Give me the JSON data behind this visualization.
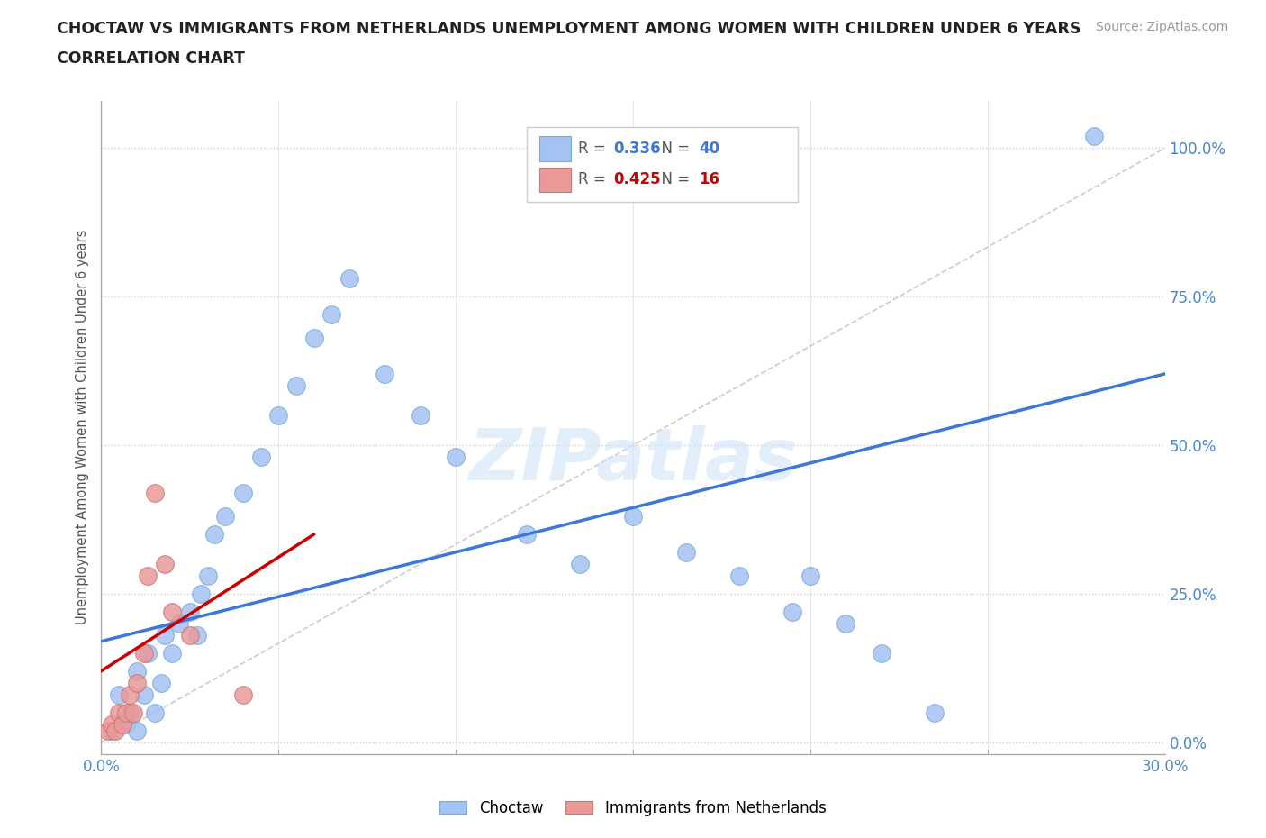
{
  "title_line1": "CHOCTAW VS IMMIGRANTS FROM NETHERLANDS UNEMPLOYMENT AMONG WOMEN WITH CHILDREN UNDER 6 YEARS",
  "title_line2": "CORRELATION CHART",
  "source_text": "Source: ZipAtlas.com",
  "ylabel": "Unemployment Among Women with Children Under 6 years",
  "xlim": [
    0.0,
    0.3
  ],
  "ylim": [
    -0.02,
    1.08
  ],
  "ytick_labels": [
    "0.0%",
    "25.0%",
    "50.0%",
    "75.0%",
    "100.0%"
  ],
  "ytick_values": [
    0.0,
    0.25,
    0.5,
    0.75,
    1.0
  ],
  "xtick_labels": [
    "0.0%",
    "30.0%"
  ],
  "xtick_values": [
    0.0,
    0.3
  ],
  "watermark": "ZIPatlas",
  "blue_R": 0.336,
  "blue_N": 40,
  "pink_R": 0.425,
  "pink_N": 16,
  "blue_color": "#a4c2f4",
  "pink_color": "#ea9999",
  "blue_line_color": "#3c78d8",
  "pink_line_color": "#cc0000",
  "dashed_line_color": "#cccccc",
  "background_color": "#ffffff",
  "grid_color": "#cccccc",
  "blue_points_x": [
    0.003,
    0.005,
    0.007,
    0.008,
    0.01,
    0.01,
    0.012,
    0.013,
    0.015,
    0.017,
    0.018,
    0.02,
    0.022,
    0.025,
    0.027,
    0.028,
    0.03,
    0.032,
    0.035,
    0.04,
    0.045,
    0.05,
    0.055,
    0.06,
    0.065,
    0.07,
    0.08,
    0.09,
    0.1,
    0.12,
    0.135,
    0.15,
    0.165,
    0.18,
    0.195,
    0.2,
    0.21,
    0.22,
    0.235,
    0.28
  ],
  "blue_points_y": [
    0.02,
    0.08,
    0.03,
    0.05,
    0.12,
    0.02,
    0.08,
    0.15,
    0.05,
    0.1,
    0.18,
    0.15,
    0.2,
    0.22,
    0.18,
    0.25,
    0.28,
    0.35,
    0.38,
    0.42,
    0.48,
    0.55,
    0.6,
    0.68,
    0.72,
    0.78,
    0.62,
    0.55,
    0.48,
    0.35,
    0.3,
    0.38,
    0.32,
    0.28,
    0.22,
    0.28,
    0.2,
    0.15,
    0.05,
    1.02
  ],
  "pink_points_x": [
    0.002,
    0.003,
    0.004,
    0.005,
    0.006,
    0.007,
    0.008,
    0.009,
    0.01,
    0.012,
    0.013,
    0.015,
    0.018,
    0.02,
    0.025,
    0.04
  ],
  "pink_points_y": [
    0.02,
    0.03,
    0.02,
    0.05,
    0.03,
    0.05,
    0.08,
    0.05,
    0.1,
    0.15,
    0.28,
    0.42,
    0.3,
    0.22,
    0.18,
    0.08
  ],
  "blue_trend_x": [
    0.0,
    0.3
  ],
  "blue_trend_y": [
    0.17,
    0.62
  ],
  "pink_trend_x": [
    0.0,
    0.06
  ],
  "pink_trend_y": [
    0.12,
    0.35
  ],
  "diag_line_x": [
    0.0,
    0.3
  ],
  "diag_line_y": [
    0.0,
    1.0
  ]
}
